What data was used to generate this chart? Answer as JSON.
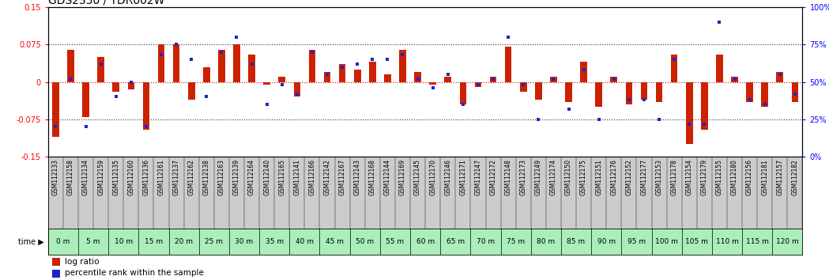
{
  "title": "GDS2350 / YDR002W",
  "samples": [
    "GSM112133",
    "GSM112158",
    "GSM112134",
    "GSM112159",
    "GSM112135",
    "GSM112160",
    "GSM112136",
    "GSM112161",
    "GSM112137",
    "GSM112162",
    "GSM112138",
    "GSM112163",
    "GSM112139",
    "GSM112164",
    "GSM112140",
    "GSM112165",
    "GSM112141",
    "GSM112166",
    "GSM112142",
    "GSM112167",
    "GSM112143",
    "GSM112168",
    "GSM112144",
    "GSM112169",
    "GSM112145",
    "GSM112170",
    "GSM112146",
    "GSM112171",
    "GSM112147",
    "GSM112172",
    "GSM112148",
    "GSM112173",
    "GSM112149",
    "GSM112174",
    "GSM112150",
    "GSM112175",
    "GSM112151",
    "GSM112176",
    "GSM112152",
    "GSM112177",
    "GSM112153",
    "GSM112178",
    "GSM112154",
    "GSM112179",
    "GSM112155",
    "GSM112180",
    "GSM112156",
    "GSM112181",
    "GSM112157",
    "GSM112182"
  ],
  "log_ratio": [
    -0.11,
    0.065,
    -0.07,
    0.05,
    -0.02,
    -0.015,
    -0.095,
    0.075,
    0.075,
    -0.035,
    0.03,
    0.065,
    0.075,
    0.055,
    -0.005,
    0.01,
    -0.03,
    0.065,
    0.02,
    0.035,
    0.025,
    0.04,
    0.015,
    0.065,
    0.02,
    -0.005,
    0.01,
    -0.045,
    -0.01,
    0.01,
    0.07,
    -0.02,
    -0.035,
    0.01,
    -0.04,
    0.04,
    -0.05,
    0.01,
    -0.045,
    -0.035,
    -0.04,
    0.055,
    -0.125,
    -0.095,
    0.055,
    0.01,
    -0.04,
    -0.05,
    0.02,
    -0.04
  ],
  "percentile": [
    20,
    52,
    20,
    62,
    40,
    50,
    20,
    68,
    75,
    65,
    40,
    70,
    80,
    62,
    35,
    48,
    42,
    70,
    55,
    60,
    62,
    65,
    65,
    68,
    52,
    46,
    55,
    35,
    48,
    52,
    80,
    48,
    25,
    52,
    32,
    58,
    25,
    52,
    38,
    38,
    25,
    65,
    22,
    22,
    90,
    52,
    38,
    35,
    55,
    42
  ],
  "time_labels": [
    "0 m",
    "5 m",
    "10 m",
    "15 m",
    "20 m",
    "25 m",
    "30 m",
    "35 m",
    "40 m",
    "45 m",
    "50 m",
    "55 m",
    "60 m",
    "65 m",
    "70 m",
    "75 m",
    "80 m",
    "85 m",
    "90 m",
    "95 m",
    "100 m",
    "105 m",
    "110 m",
    "115 m",
    "120 m"
  ],
  "time_positions": [
    0.5,
    2.5,
    4.5,
    6.5,
    8.5,
    10.5,
    12.5,
    14.5,
    16.5,
    18.5,
    20.5,
    22.5,
    24.5,
    26.5,
    28.5,
    30.5,
    32.5,
    34.5,
    36.5,
    38.5,
    40.5,
    42.5,
    44.5,
    46.5,
    48.5
  ],
  "ylim": [
    -0.15,
    0.15
  ],
  "yticks_left": [
    -0.15,
    -0.075,
    0.0,
    0.075,
    0.15
  ],
  "ytick_labels_left": [
    "-0.15",
    "-0.075",
    "0",
    "0.075",
    "0.15"
  ],
  "yticks_right_pct": [
    0,
    25,
    50,
    75,
    100
  ],
  "ytick_labels_right": [
    "0%",
    "25%",
    "50%",
    "75%",
    "100%"
  ],
  "bar_color": "#cc2200",
  "dot_color": "#2222cc",
  "bg_color": "#ffffff",
  "plot_bg_color": "#ffffff",
  "title_fontsize": 10,
  "tick_fontsize": 7,
  "label_fontsize": 5.5,
  "time_fontsize": 6.5,
  "legend_fontsize": 7.5,
  "legend_label_ratio": "log ratio",
  "legend_label_pct": "percentile rank within the sample",
  "time_bg_color": "#aaeebb",
  "sample_bg_color": "#cccccc",
  "hline_color_zero": "#dd0000",
  "hline_color_ref": "#333333"
}
